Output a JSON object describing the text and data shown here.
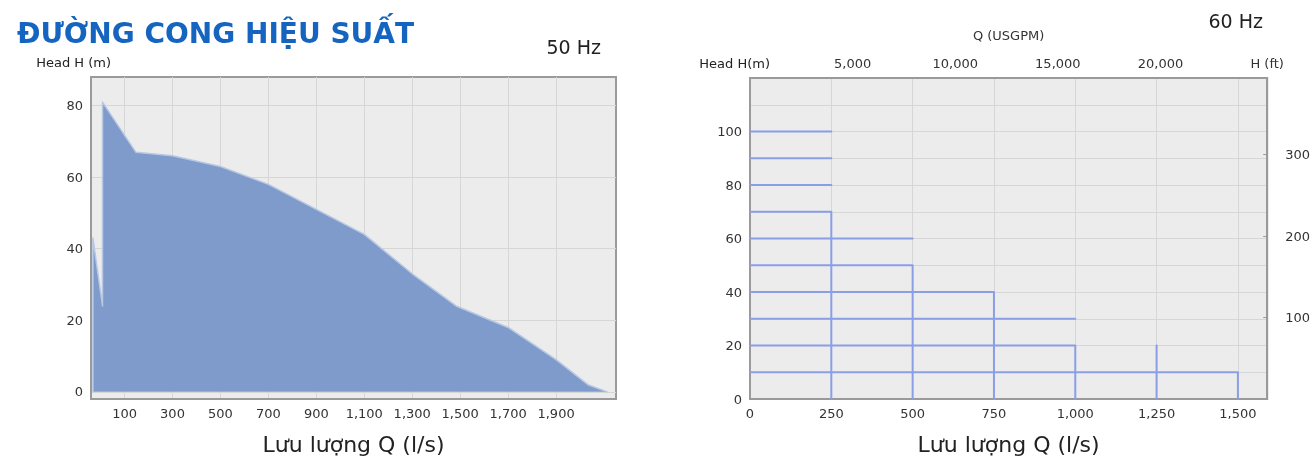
{
  "chart_data": [
    {
      "type": "area",
      "title": "ĐƯỜNG CONG HIỆU SUẤT",
      "subtitle": "50 Hz",
      "xlabel": "Lưu lượng Q (l/s)",
      "ylabel": "Head H (m)",
      "xlim": [
        -40,
        2150
      ],
      "xticks": [
        100,
        300,
        500,
        700,
        900,
        {
          "value": 1100,
          "label": "1,100"
        },
        {
          "value": 1300,
          "label": "1,300"
        },
        {
          "value": 1500,
          "label": "1,500"
        },
        {
          "value": 1700,
          "label": "1,700"
        },
        {
          "value": 1900,
          "label": "1,900"
        }
      ],
      "ylim": [
        -2,
        88
      ],
      "yticks": [
        0,
        20,
        40,
        60,
        80
      ],
      "grid": true,
      "marker": "none",
      "series": [
        {
          "color": "#7f9bcb",
          "x": [
            -32,
            -32,
            8,
            8,
            147,
            300,
            500,
            700,
            900,
            1100,
            1300,
            1483,
            1700,
            1900,
            2033,
            2113
          ],
          "values": [
            0,
            43,
            24,
            81,
            67,
            66,
            63,
            58,
            51,
            44,
            33,
            24,
            18,
            9,
            2,
            0
          ]
        }
      ]
    },
    {
      "type": "line",
      "subtitle": "60 Hz",
      "xlabel": "Lưu lượng Q (l/s)",
      "ylabel": "Head H(m)",
      "x2label": "Q (USGPM)",
      "y2label": "H (ft)",
      "xlim": [
        0,
        1590
      ],
      "xticks": [
        0,
        250,
        500,
        750,
        {
          "value": 1000,
          "label": "1,000"
        },
        {
          "value": 1250,
          "label": "1,250"
        },
        {
          "value": 1500,
          "label": "1,500"
        }
      ],
      "x2lim": [
        0,
        25200
      ],
      "x2ticks": [
        {
          "value": 5000,
          "label": "5,000"
        },
        {
          "value": 10000,
          "label": "10,000"
        },
        {
          "value": 15000,
          "label": "15,000"
        },
        {
          "value": 20000,
          "label": "20,000"
        }
      ],
      "ylim": [
        0,
        120
      ],
      "yticks": [
        0,
        {
          "value": 10,
          "label": null
        },
        20,
        {
          "value": 30,
          "label": null
        },
        40,
        {
          "value": 50,
          "label": null
        },
        60,
        {
          "value": 70,
          "label": null
        },
        80,
        {
          "value": 90,
          "label": null
        },
        100,
        {
          "value": 110,
          "label": null
        }
      ],
      "y2lim": [
        0,
        394
      ],
      "y2ticks": [
        100,
        200,
        300
      ],
      "grid": true,
      "marker": "none",
      "line_style": "solid",
      "series": [
        {
          "color": "#8a9ee6",
          "x": [
            0,
            250
          ],
          "values": [
            100,
            100
          ]
        },
        {
          "color": "#8a9ee6",
          "x": [
            0,
            250
          ],
          "values": [
            90,
            90
          ]
        },
        {
          "color": "#8a9ee6",
          "x": [
            0,
            250
          ],
          "values": [
            80,
            80
          ]
        },
        {
          "color": "#8a9ee6",
          "x": [
            0,
            250,
            250
          ],
          "values": [
            70,
            70,
            0
          ]
        },
        {
          "color": "#8a9ee6",
          "x": [
            0,
            500
          ],
          "values": [
            60,
            60
          ]
        },
        {
          "color": "#8a9ee6",
          "x": [
            0,
            500,
            500
          ],
          "values": [
            50,
            50,
            0
          ]
        },
        {
          "color": "#8a9ee6",
          "x": [
            0,
            750,
            750
          ],
          "values": [
            40,
            40,
            0
          ]
        },
        {
          "color": "#8a9ee6",
          "x": [
            0,
            1000
          ],
          "values": [
            30,
            30
          ]
        },
        {
          "color": "#8a9ee6",
          "x": [
            0,
            1000,
            1000
          ],
          "values": [
            20,
            20,
            0
          ]
        },
        {
          "color": "#8a9ee6",
          "x": [
            0,
            1500,
            1500
          ],
          "values": [
            10,
            10,
            0
          ]
        },
        {
          "color": "#8a9ee6",
          "x": [
            1250,
            1250
          ],
          "values": [
            20,
            0
          ]
        }
      ]
    }
  ]
}
